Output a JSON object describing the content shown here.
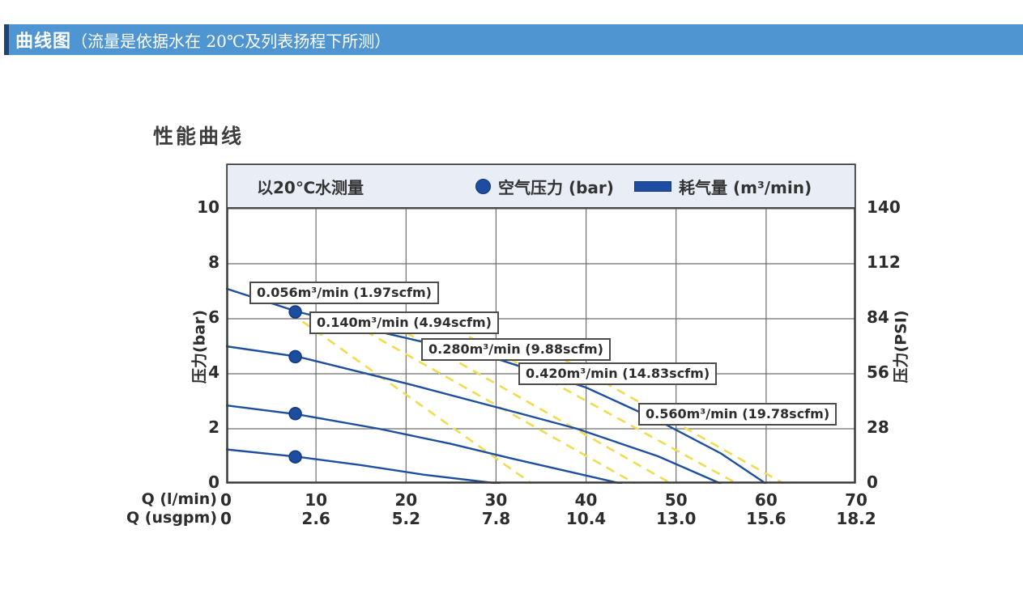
{
  "header": {
    "title_bold": "曲线图",
    "title_rest": "（流量是依据水在 20℃及列表扬程下所测）"
  },
  "chart": {
    "title": "性能曲线",
    "legend": {
      "note": "以20℃水测量",
      "dot_label": "空气压力 (bar)",
      "bar_label": "耗气量 (m³/min)"
    }
  },
  "colors": {
    "header_blue": "#4e95d1",
    "header_accent": "#1d4474",
    "legend_bg": "#e9eef6",
    "curve_blue": "#1e4f9f",
    "marker_blue": "#1d4da0",
    "air_yellow": "#f0db52",
    "grid_gray": "#6e6e6e",
    "border_dark": "#3a3a3a"
  },
  "chart_data": {
    "type": "line",
    "title": "性能曲线",
    "grid": true,
    "x_axis": {
      "label_primary": "Q (l/min)",
      "label_secondary": "Q (usgpm)",
      "range": [
        0,
        70
      ],
      "ticks": [
        {
          "v": 0,
          "lmin": "0",
          "usgpm": "0"
        },
        {
          "v": 10,
          "lmin": "10",
          "usgpm": "2.6"
        },
        {
          "v": 20,
          "lmin": "20",
          "usgpm": "5.2"
        },
        {
          "v": 30,
          "lmin": "30",
          "usgpm": "7.8"
        },
        {
          "v": 40,
          "lmin": "40",
          "usgpm": "10.4"
        },
        {
          "v": 50,
          "lmin": "50",
          "usgpm": "13.0"
        },
        {
          "v": 60,
          "lmin": "60",
          "usgpm": "15.6"
        },
        {
          "v": 70,
          "lmin": "70",
          "usgpm": "18.2"
        }
      ],
      "grid": [
        10,
        20,
        30,
        40,
        50,
        60
      ]
    },
    "y_axis_left": {
      "label": "压力(bar)",
      "range": [
        0,
        10
      ],
      "ticks": [
        {
          "v": 10,
          "bar": "10",
          "psi": "140"
        },
        {
          "v": 8,
          "bar": "8",
          "psi": "112"
        },
        {
          "v": 6,
          "bar": "6",
          "psi": "84"
        },
        {
          "v": 4,
          "bar": "4",
          "psi": "56"
        },
        {
          "v": 2,
          "bar": "2",
          "psi": "28"
        },
        {
          "v": 0,
          "bar": "0",
          "psi": "0"
        }
      ],
      "grid": [
        2,
        4,
        6,
        8,
        10
      ]
    },
    "y_axis_right": {
      "label": "压力(PSI)",
      "range": [
        0,
        140
      ]
    },
    "pressure_curves": [
      {
        "points": [
          [
            0,
            7.1
          ],
          [
            8,
            6.25
          ],
          [
            18,
            5.45
          ],
          [
            30,
            4.55
          ],
          [
            40,
            3.5
          ],
          [
            48,
            2.3
          ],
          [
            55,
            1.1
          ],
          [
            60,
            0
          ]
        ]
      },
      {
        "points": [
          [
            0,
            5.0
          ],
          [
            8,
            4.62
          ],
          [
            20,
            3.65
          ],
          [
            31.5,
            2.66
          ],
          [
            39,
            2.0
          ],
          [
            48,
            1.0
          ],
          [
            55,
            0
          ]
        ]
      },
      {
        "points": [
          [
            0,
            2.85
          ],
          [
            8,
            2.52
          ],
          [
            17,
            2.0
          ],
          [
            25,
            1.45
          ],
          [
            32,
            0.9
          ],
          [
            38,
            0.45
          ],
          [
            44,
            0
          ]
        ]
      },
      {
        "points": [
          [
            0,
            1.25
          ],
          [
            8,
            0.98
          ],
          [
            15,
            0.68
          ],
          [
            22,
            0.33
          ],
          [
            30.5,
            0
          ]
        ]
      }
    ],
    "air_consumption_lines": [
      {
        "points": [
          [
            8.5,
            5.9
          ],
          [
            34,
            0
          ]
        ]
      },
      {
        "points": [
          [
            12.5,
            6.1
          ],
          [
            45.5,
            0
          ]
        ]
      },
      {
        "points": [
          [
            20,
            5.5
          ],
          [
            49.5,
            0
          ]
        ]
      },
      {
        "points": [
          [
            27,
            5.35
          ],
          [
            56.8,
            0
          ]
        ]
      },
      {
        "points": [
          [
            36,
            4.8
          ],
          [
            62,
            0
          ]
        ]
      }
    ],
    "markers": [
      [
        7.7,
        6.25
      ],
      [
        7.7,
        4.62
      ],
      [
        7.7,
        2.55
      ],
      [
        7.7,
        0.98
      ]
    ],
    "annotations": [
      {
        "text": "0.056m³/min (1.97scfm)",
        "x": 2.6,
        "y": 7.35
      },
      {
        "text": "0.140m³/min (4.94scfm)",
        "x": 9.3,
        "y": 6.26
      },
      {
        "text": "0.280m³/min (9.88scfm)",
        "x": 21.7,
        "y": 5.29
      },
      {
        "text": "0.420m³/min (14.83scfm)",
        "x": 32.5,
        "y": 4.41
      },
      {
        "text": "0.560m³/min (19.78scfm)",
        "x": 45.8,
        "y": 2.94
      }
    ]
  }
}
